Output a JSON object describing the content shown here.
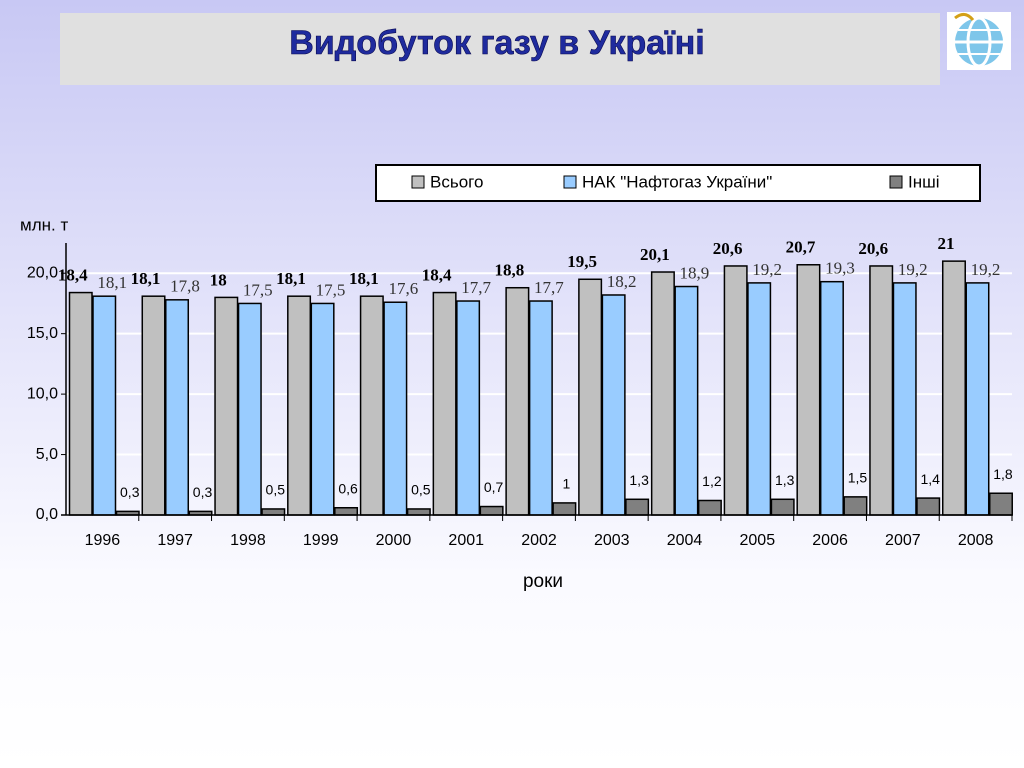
{
  "chart_data": {
    "type": "bar",
    "title": "Видобуток газу в Україні",
    "y_label": "млн. т",
    "x_label": "роки",
    "categories": [
      "1996",
      "1997",
      "1998",
      "1999",
      "2000",
      "2001",
      "2002",
      "2003",
      "2004",
      "2005",
      "2006",
      "2007",
      "2008"
    ],
    "series": [
      {
        "name": "Всього",
        "color": "#c0c0c0",
        "values": [
          18.4,
          18.1,
          18,
          18.1,
          18.1,
          18.4,
          18.8,
          19.5,
          20.1,
          20.6,
          20.7,
          20.6,
          21
        ],
        "value_labels": [
          "18,4",
          "18,1",
          "18",
          "18,1",
          "18,1",
          "18,4",
          "18,8",
          "19,5",
          "20,1",
          "20,6",
          "20,7",
          "20,6",
          "21"
        ]
      },
      {
        "name": "НАК \"Нафтогаз України\"",
        "color": "#99ccff",
        "values": [
          18.1,
          17.8,
          17.5,
          17.5,
          17.6,
          17.7,
          17.7,
          18.2,
          18.9,
          19.2,
          19.3,
          19.2,
          19.2
        ],
        "value_labels": [
          "18,1",
          "17,8",
          "17,5",
          "17,5",
          "17,6",
          "17,7",
          "17,7",
          "18,2",
          "18,9",
          "19,2",
          "19,3",
          "19,2",
          "19,2"
        ]
      },
      {
        "name": "Інші",
        "color": "#808080",
        "values": [
          0.3,
          0.3,
          0.5,
          0.6,
          0.5,
          0.7,
          1,
          1.3,
          1.2,
          1.3,
          1.5,
          1.4,
          1.8
        ],
        "value_labels": [
          "0,3",
          "0,3",
          "0,5",
          "0,6",
          "0,5",
          "0,7",
          "1",
          "1,3",
          "1,2",
          "1,3",
          "1,5",
          "1,4",
          "1,8"
        ]
      }
    ],
    "ylim": [
      0,
      22.5
    ],
    "yticks": [
      {
        "value": 0,
        "label": "0,0"
      },
      {
        "value": 5,
        "label": "5,0"
      },
      {
        "value": 10,
        "label": "10,0"
      },
      {
        "value": 15,
        "label": "15,0"
      },
      {
        "value": 20,
        "label": "20,0"
      }
    ],
    "grid": true
  }
}
